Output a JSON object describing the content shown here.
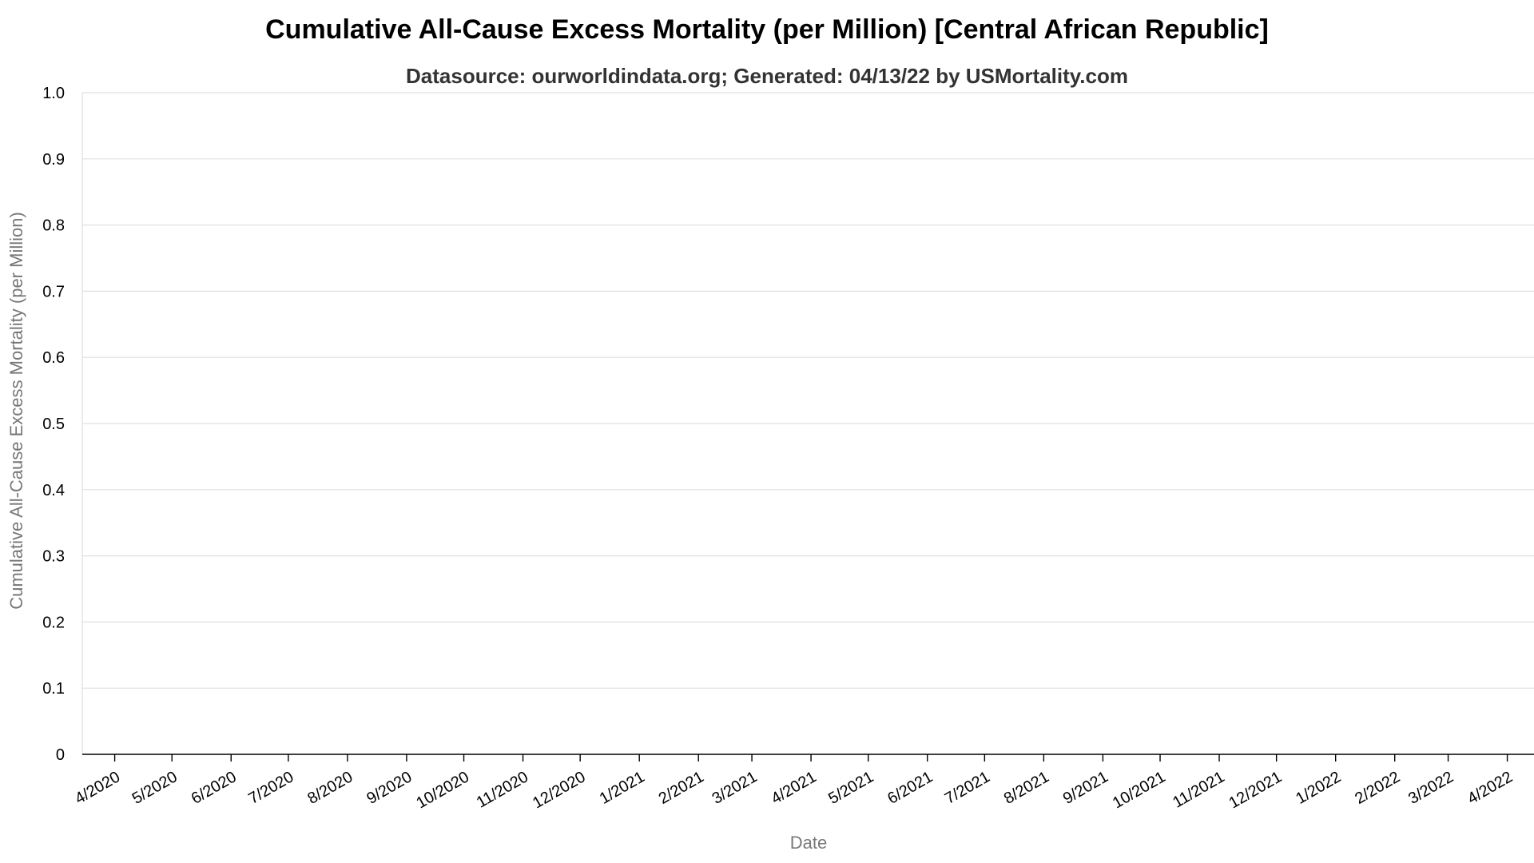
{
  "chart_data": {
    "type": "line",
    "title": "Cumulative All-Cause Excess Mortality (per Million) [Central African Republic]",
    "subtitle": "Datasource: ourworldindata.org; Generated: 04/13/22 by USMortality.com",
    "xlabel": "Date",
    "ylabel": "Cumulative All-Cause Excess Mortality (per Million)",
    "ylim": [
      0,
      1
    ],
    "yticks": [
      "0",
      "0.1",
      "0.2",
      "0.3",
      "0.4",
      "0.5",
      "0.6",
      "0.7",
      "0.8",
      "0.9",
      "1.0"
    ],
    "xticks": [
      "4/2020",
      "5/2020",
      "6/2020",
      "7/2020",
      "8/2020",
      "9/2020",
      "10/2020",
      "11/2020",
      "12/2020",
      "1/2021",
      "2/2021",
      "3/2021",
      "4/2021",
      "5/2021",
      "6/2021",
      "7/2021",
      "8/2021",
      "9/2021",
      "10/2021",
      "11/2021",
      "12/2021",
      "1/2022",
      "2/2022",
      "3/2022",
      "4/2022"
    ],
    "xlim": [
      "3/15/2020",
      "4/15/2022"
    ],
    "grid": true,
    "series": []
  },
  "colors": {
    "grid": "#e0e0e0",
    "axis": "#000000",
    "tick_text": "#000000",
    "axis_title": "#777777"
  }
}
